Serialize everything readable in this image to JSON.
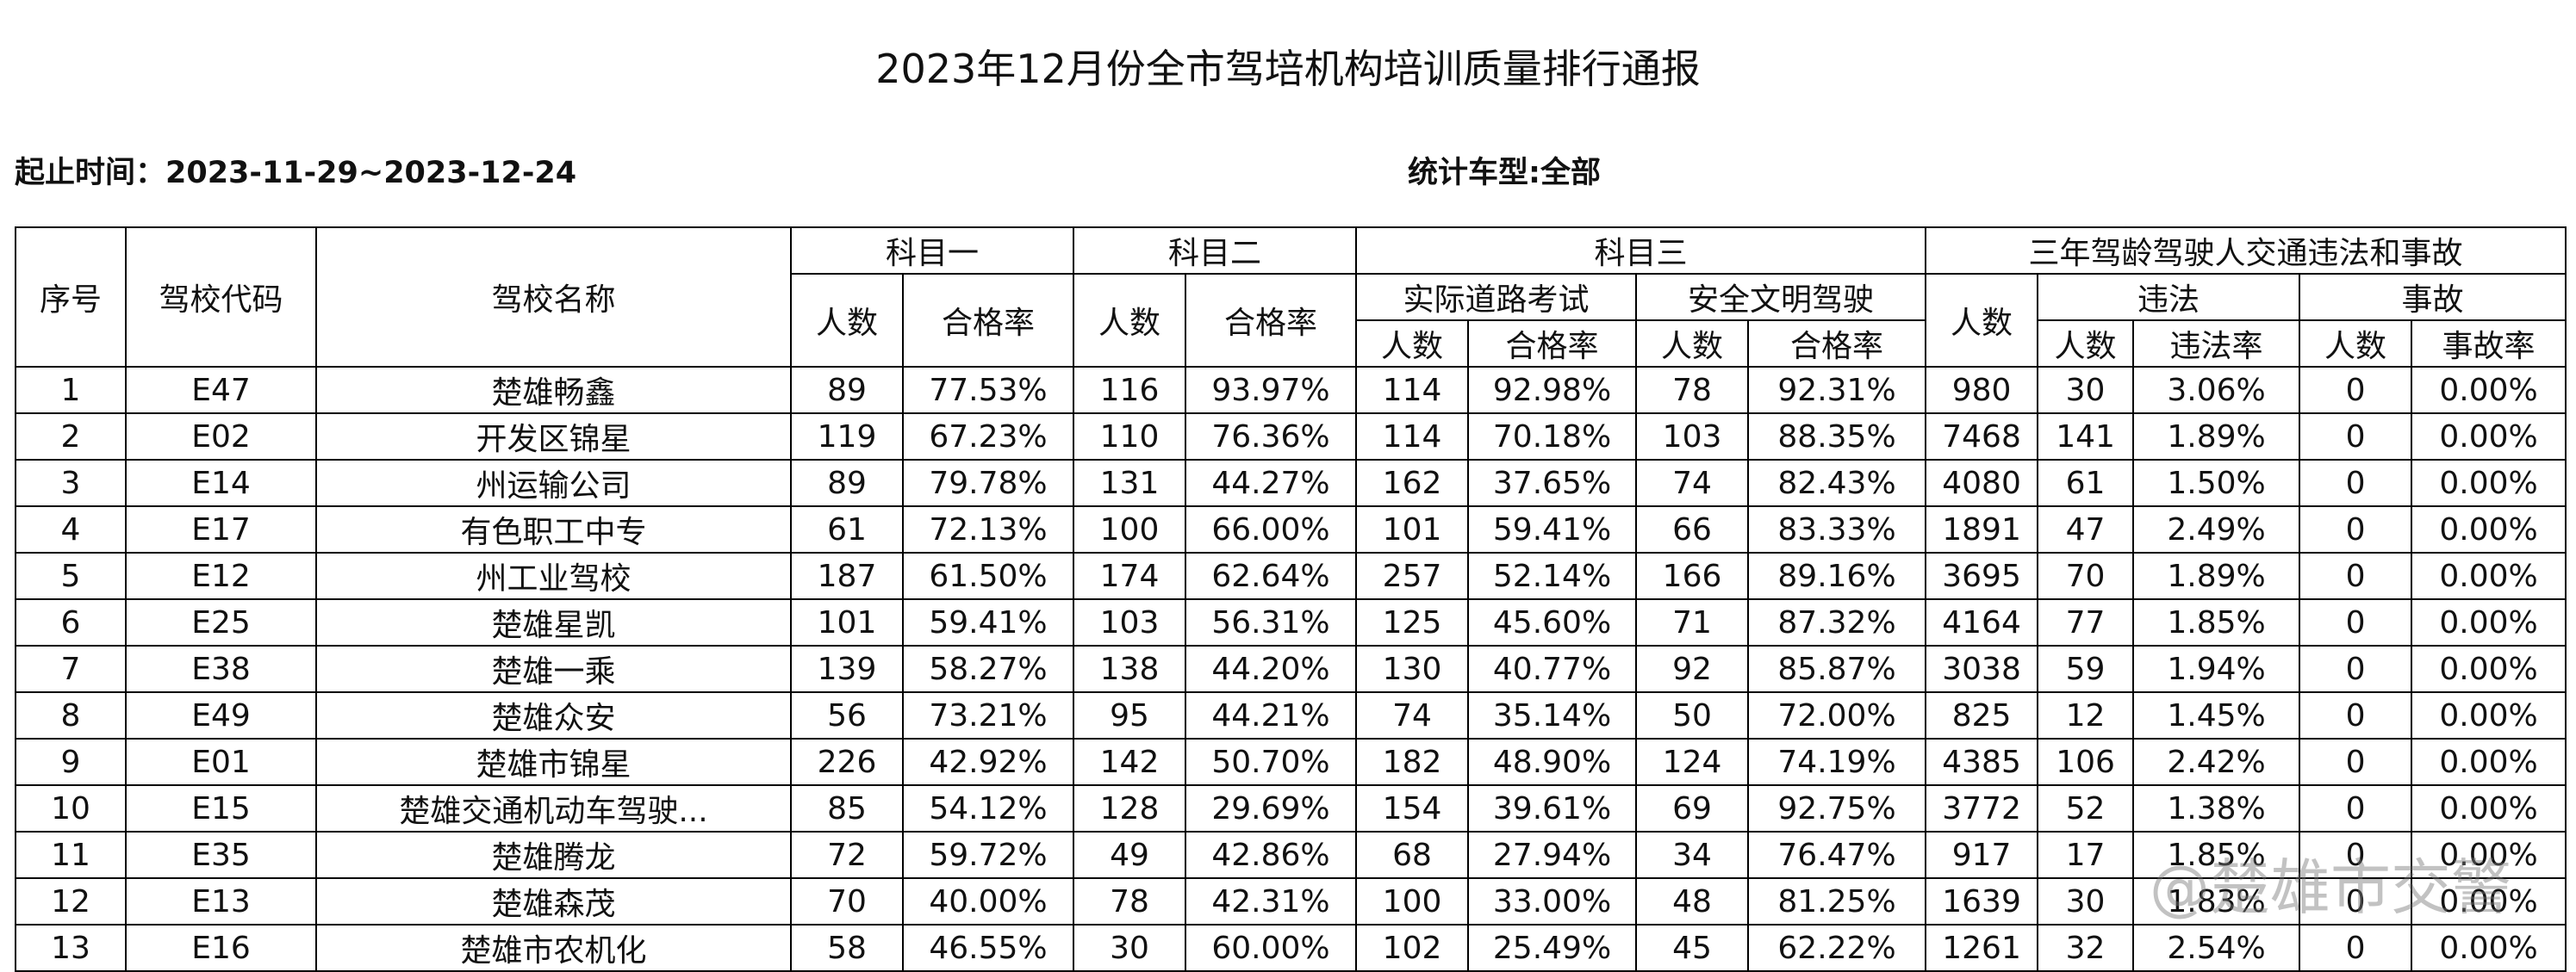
{
  "title": "2023年12月份全市驾培机构培训质量排行通报",
  "date_range": "起止时间：2023-11-29~2023-12-24",
  "vehicle_type": "统计车型:全部",
  "watermark": "@楚雄市交警",
  "table": {
    "header": [
      [
        "序号",
        "驾校代码",
        "驾校名称",
        "科目一",
        "科目二",
        "科目三",
        "三年驾龄驾驶人交通违法和事故"
      ],
      [
        "人数",
        "合格率",
        "人数",
        "合格率",
        "实际道路考试",
        "安全文明驾驶",
        "人数",
        "违法",
        "事故"
      ],
      [
        "人数",
        "合格率",
        "人数",
        "合格率",
        "人数",
        "违法率",
        "人数",
        "事故率"
      ]
    ],
    "rows": [
      [
        1,
        "E47",
        "楚雄畅鑫",
        89,
        "77.53%",
        116,
        "93.97%",
        114,
        "92.98%",
        78,
        "92.31%",
        980,
        30,
        "3.06%",
        0,
        "0.00%"
      ],
      [
        2,
        "E02",
        "开发区锦星",
        119,
        "67.23%",
        110,
        "76.36%",
        114,
        "70.18%",
        103,
        "88.35%",
        7468,
        141,
        "1.89%",
        0,
        "0.00%"
      ],
      [
        3,
        "E14",
        "州运输公司",
        89,
        "79.78%",
        131,
        "44.27%",
        162,
        "37.65%",
        74,
        "82.43%",
        4080,
        61,
        "1.50%",
        0,
        "0.00%"
      ],
      [
        4,
        "E17",
        "有色职工中专",
        61,
        "72.13%",
        100,
        "66.00%",
        101,
        "59.41%",
        66,
        "83.33%",
        1891,
        47,
        "2.49%",
        0,
        "0.00%"
      ],
      [
        5,
        "E12",
        "州工业驾校",
        187,
        "61.50%",
        174,
        "62.64%",
        257,
        "52.14%",
        166,
        "89.16%",
        3695,
        70,
        "1.89%",
        0,
        "0.00%"
      ],
      [
        6,
        "E25",
        "楚雄星凯",
        101,
        "59.41%",
        103,
        "56.31%",
        125,
        "45.60%",
        71,
        "87.32%",
        4164,
        77,
        "1.85%",
        0,
        "0.00%"
      ],
      [
        7,
        "E38",
        "楚雄一乘",
        139,
        "58.27%",
        138,
        "44.20%",
        130,
        "40.77%",
        92,
        "85.87%",
        3038,
        59,
        "1.94%",
        0,
        "0.00%"
      ],
      [
        8,
        "E49",
        "楚雄众安",
        56,
        "73.21%",
        95,
        "44.21%",
        74,
        "35.14%",
        50,
        "72.00%",
        825,
        12,
        "1.45%",
        0,
        "0.00%"
      ],
      [
        9,
        "E01",
        "楚雄市锦星",
        226,
        "42.92%",
        142,
        "50.70%",
        182,
        "48.90%",
        124,
        "74.19%",
        4385,
        106,
        "2.42%",
        0,
        "0.00%"
      ],
      [
        10,
        "E15",
        "楚雄交通机动车驾驶...",
        85,
        "54.12%",
        128,
        "29.69%",
        154,
        "39.61%",
        69,
        "92.75%",
        3772,
        52,
        "1.38%",
        0,
        "0.00%"
      ],
      [
        11,
        "E35",
        "楚雄腾龙",
        72,
        "59.72%",
        49,
        "42.86%",
        68,
        "27.94%",
        34,
        "76.47%",
        917,
        17,
        "1.85%",
        0,
        "0.00%"
      ],
      [
        12,
        "E13",
        "楚雄森茂",
        70,
        "40.00%",
        78,
        "42.31%",
        100,
        "33.00%",
        48,
        "81.25%",
        1639,
        30,
        "1.83%",
        0,
        "0.00%"
      ],
      [
        13,
        "E16",
        "楚雄市农机化",
        58,
        "46.55%",
        30,
        "60.00%",
        102,
        "25.49%",
        45,
        "62.22%",
        1261,
        32,
        "2.54%",
        0,
        "0.00%"
      ]
    ]
  }
}
